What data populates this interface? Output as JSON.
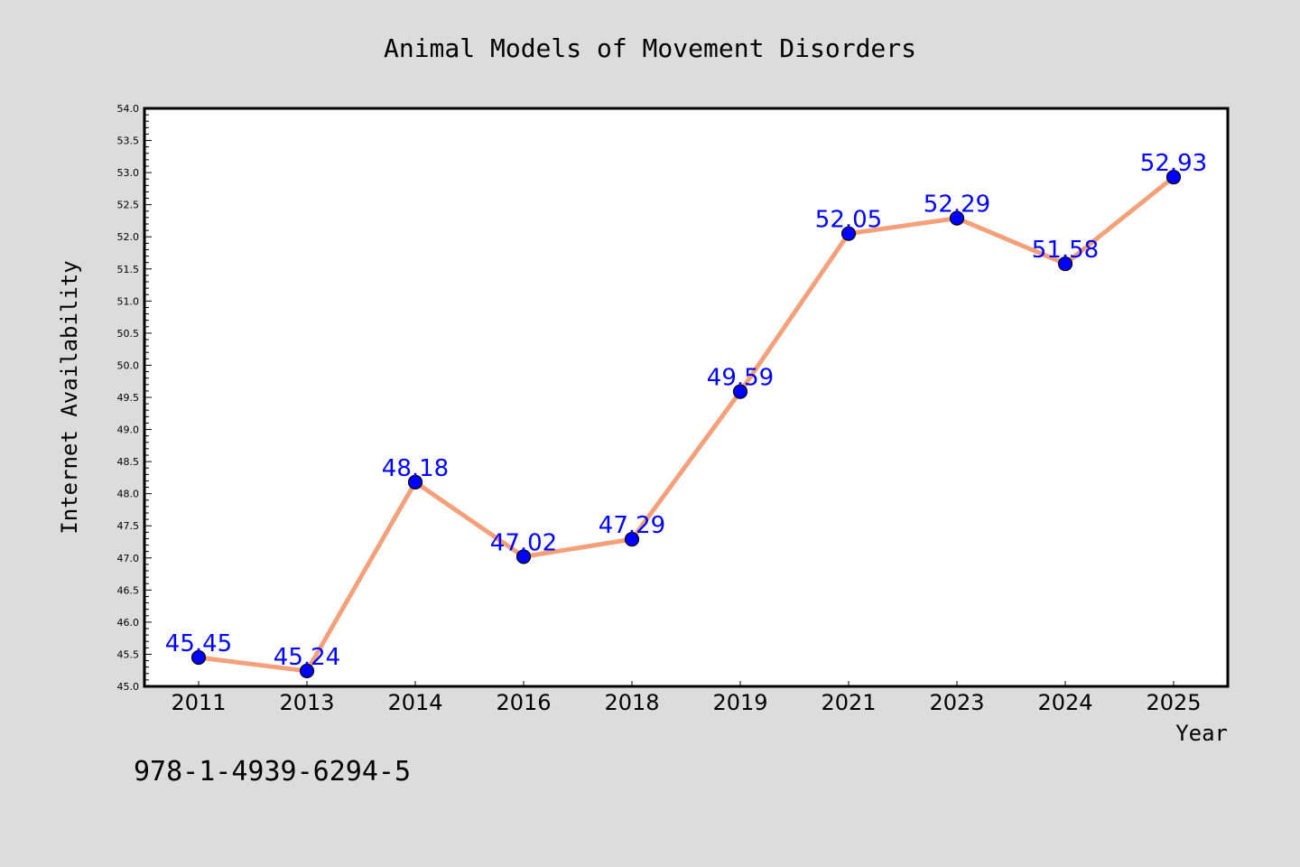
{
  "chart_data": {
    "type": "line",
    "title": "Animal Models of Movement Disorders",
    "xlabel": "Year",
    "ylabel": "Internet Availability",
    "categories": [
      "2011",
      "2013",
      "2014",
      "2016",
      "2018",
      "2019",
      "2021",
      "2023",
      "2024",
      "2025"
    ],
    "series": [
      {
        "values": [
          45.45,
          45.24,
          48.18,
          47.02,
          47.29,
          49.59,
          52.05,
          52.29,
          51.58,
          52.93
        ],
        "labels": [
          "45.45",
          "45.24",
          "48.18",
          "47.02",
          "47.29",
          "49.59",
          "52.05",
          "52.29",
          "51.58",
          "52.93"
        ]
      }
    ],
    "ylim": [
      45.0,
      54.0
    ],
    "yticks": [
      "45.0",
      "45.5",
      "46.0",
      "46.5",
      "47.0",
      "47.5",
      "48.0",
      "48.5",
      "49.0",
      "49.5",
      "50.0",
      "50.5",
      "51.0",
      "51.5",
      "52.0",
      "52.5",
      "53.0",
      "53.5",
      "54.0"
    ],
    "grid": false,
    "colors": {
      "line": "#f4a07a",
      "marker": "#0000ff",
      "data_label": "#0000ff",
      "background": "#dcdcdc",
      "plot_background": "#ffffff"
    }
  },
  "footnote": "978-1-4939-6294-5"
}
